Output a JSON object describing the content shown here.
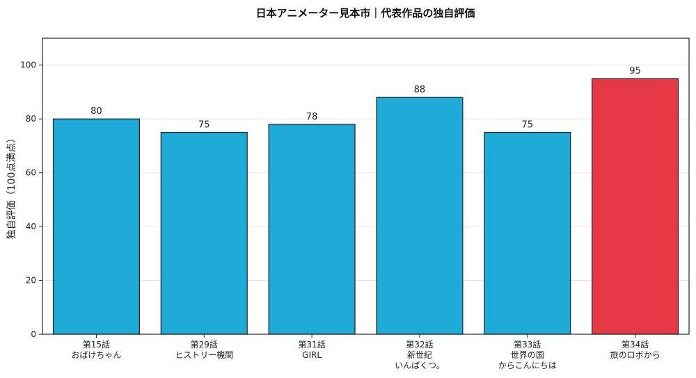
{
  "chart_data": {
    "type": "bar",
    "title": "日本アニメーター見本市｜代表作品の独自評価",
    "xlabel": "",
    "ylabel": "独自評価（100点満点）",
    "ylim": [
      0,
      110
    ],
    "yticks": [
      0,
      20,
      40,
      60,
      80,
      100
    ],
    "grid": true,
    "categories": [
      [
        "第15話",
        "おばけちゃん"
      ],
      [
        "第29話",
        "ヒストリー機関"
      ],
      [
        "第31話",
        "GIRL"
      ],
      [
        "第32話",
        "新世紀",
        "いんぱくつ。"
      ],
      [
        "第33話",
        "世界の国",
        "からこんにちは"
      ],
      [
        "第34話",
        "旅のロボから"
      ]
    ],
    "values": [
      80,
      75,
      78,
      88,
      75,
      95
    ],
    "value_labels": [
      "80",
      "75",
      "78",
      "88",
      "75",
      "95"
    ],
    "bar_colors": [
      "#1eaad6",
      "#1eaad6",
      "#1eaad6",
      "#1eaad6",
      "#1eaad6",
      "#e63946"
    ],
    "highlight_index": 5
  }
}
